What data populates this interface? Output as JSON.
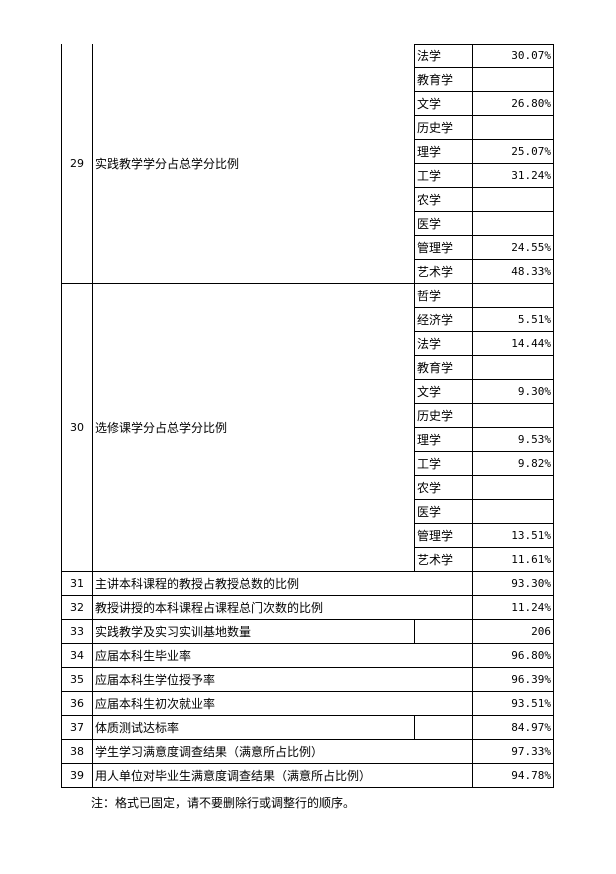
{
  "rows": [
    {
      "no": "29",
      "label": "实践教学学分占总学分比例",
      "subs": [
        {
          "name": "法学",
          "value": "30.07%"
        },
        {
          "name": "教育学",
          "value": ""
        },
        {
          "name": "文学",
          "value": "26.80%"
        },
        {
          "name": "历史学",
          "value": ""
        },
        {
          "name": "理学",
          "value": "25.07%"
        },
        {
          "name": "工学",
          "value": "31.24%"
        },
        {
          "name": "农学",
          "value": ""
        },
        {
          "name": "医学",
          "value": ""
        },
        {
          "name": "管理学",
          "value": "24.55%"
        },
        {
          "name": "艺术学",
          "value": "48.33%"
        }
      ]
    },
    {
      "no": "30",
      "label": "选修课学分占总学分比例",
      "subs": [
        {
          "name": "哲学",
          "value": ""
        },
        {
          "name": "经济学",
          "value": "5.51%"
        },
        {
          "name": "法学",
          "value": "14.44%"
        },
        {
          "name": "教育学",
          "value": ""
        },
        {
          "name": "文学",
          "value": "9.30%"
        },
        {
          "name": "历史学",
          "value": ""
        },
        {
          "name": "理学",
          "value": "9.53%"
        },
        {
          "name": "工学",
          "value": "9.82%"
        },
        {
          "name": "农学",
          "value": ""
        },
        {
          "name": "医学",
          "value": ""
        },
        {
          "name": "管理学",
          "value": "13.51%"
        },
        {
          "name": "艺术学",
          "value": "11.61%"
        }
      ]
    }
  ],
  "simple": [
    {
      "no": "31",
      "label": "主讲本科课程的教授占教授总数的比例",
      "value": "93.30%",
      "split": false
    },
    {
      "no": "32",
      "label": "教授讲授的本科课程占课程总门次数的比例",
      "value": "11.24%",
      "split": false
    },
    {
      "no": "33",
      "label": "实践教学及实习实训基地数量",
      "value": "206",
      "split": true
    },
    {
      "no": "34",
      "label": "应届本科生毕业率",
      "value": "96.80%",
      "split": false
    },
    {
      "no": "35",
      "label": "应届本科生学位授予率",
      "value": "96.39%",
      "split": false
    },
    {
      "no": "36",
      "label": "应届本科生初次就业率",
      "value": "93.51%",
      "split": false
    },
    {
      "no": "37",
      "label": "体质测试达标率",
      "value": "84.97%",
      "split": true
    },
    {
      "no": "38",
      "label": "学生学习满意度调查结果（满意所占比例）",
      "value": "97.33%",
      "split": false
    },
    {
      "no": "39",
      "label": "用人单位对毕业生满意度调查结果（满意所占比例）",
      "value": "94.78%",
      "split": false
    }
  ],
  "note": "注：格式已固定，请不要删除行或调整行的顺序。"
}
